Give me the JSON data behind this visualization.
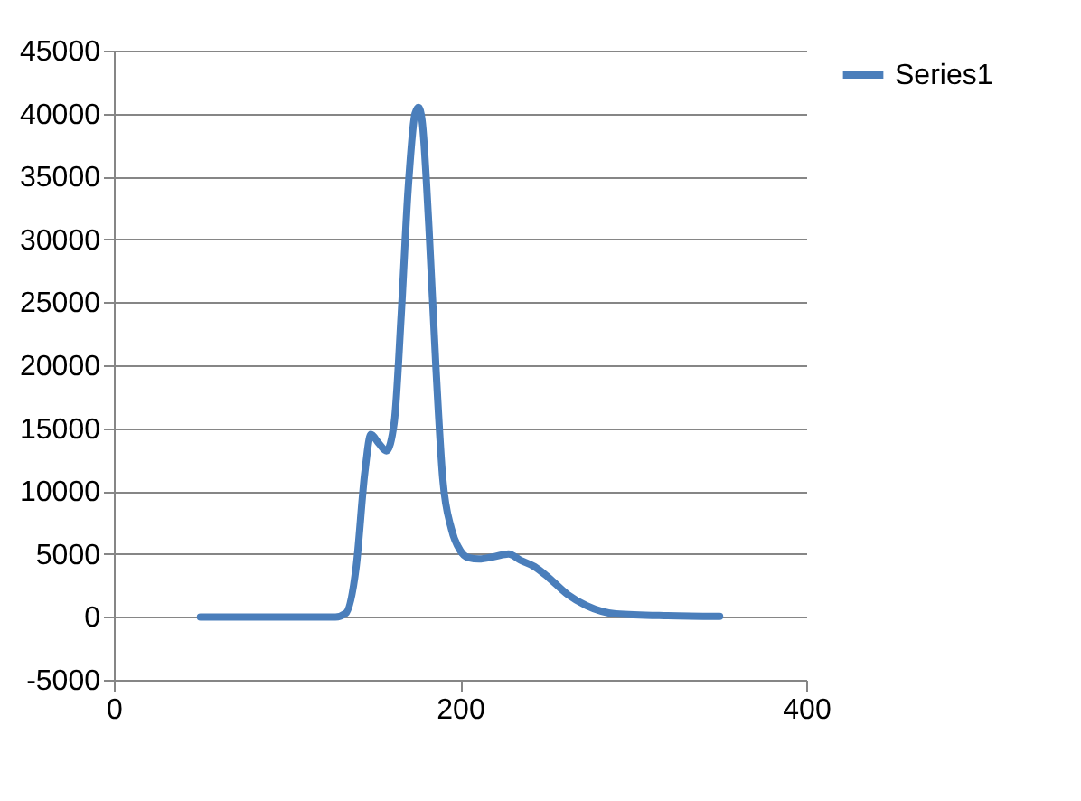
{
  "chart_data": {
    "type": "line",
    "x": [
      50,
      100,
      128,
      134,
      140,
      145,
      148.5,
      153,
      157.5,
      162,
      166,
      170,
      174,
      176,
      178,
      182,
      186,
      190,
      195,
      200,
      205,
      211,
      220,
      228,
      235,
      243,
      251,
      262,
      273,
      290,
      320,
      350
    ],
    "series": [
      {
        "name": "Series1",
        "color": "#4a7ebb",
        "values": [
          0,
          0,
          0,
          300,
          4000,
          11500,
          14500,
          13800,
          13200,
          15500,
          24000,
          34000,
          40000,
          40500,
          39500,
          31000,
          20000,
          11000,
          7000,
          5300,
          4700,
          4600,
          4800,
          5000,
          4500,
          4000,
          3150,
          1800,
          900,
          250,
          100,
          50
        ]
      }
    ],
    "xlim": [
      0,
      400
    ],
    "xticks": [
      0,
      200,
      400
    ],
    "ylim": [
      -5000,
      45000
    ],
    "yticks": [
      -5000,
      0,
      5000,
      10000,
      15000,
      20000,
      25000,
      30000,
      35000,
      40000,
      45000
    ],
    "grid": "y",
    "legend": "right",
    "marker": "none",
    "line_style": "solid"
  }
}
